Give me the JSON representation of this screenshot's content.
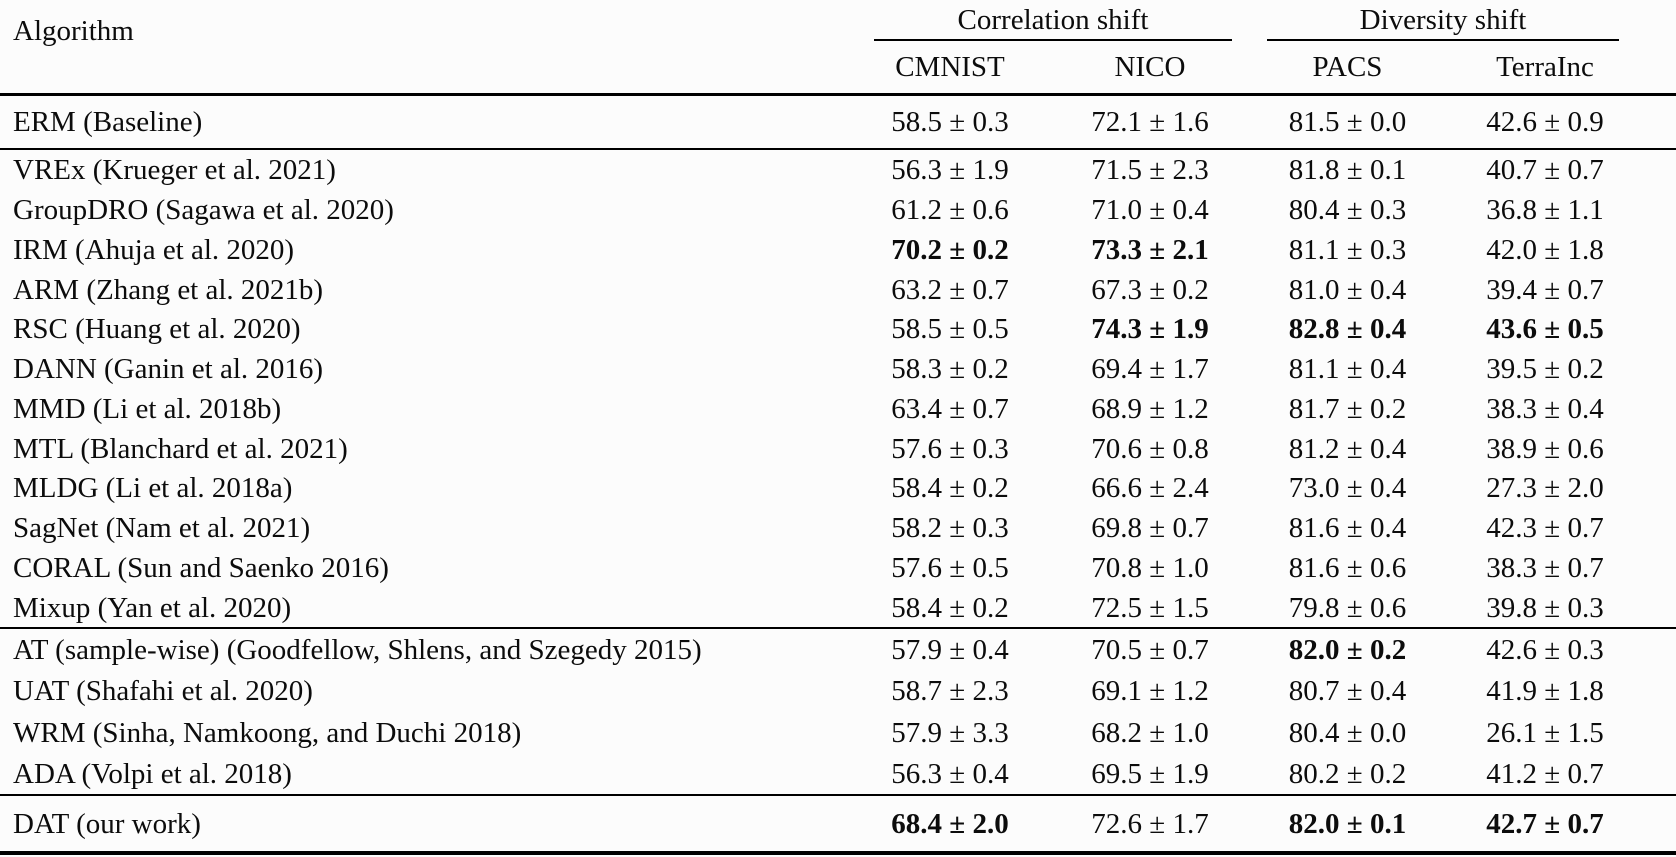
{
  "table": {
    "header": {
      "algorithm": "Algorithm",
      "group1": "Correlation shift",
      "group2": "Diversity shift",
      "sub": [
        "CMNIST",
        "NICO",
        "PACS",
        "TerraInc"
      ]
    },
    "sections": [
      {
        "name": "baseline",
        "rows": [
          {
            "algorithm": "ERM (Baseline)",
            "values": [
              {
                "text": "58.5 ± 0.3",
                "bold": false
              },
              {
                "text": "72.1 ± 1.6",
                "bold": false
              },
              {
                "text": "81.5 ± 0.0",
                "bold": false
              },
              {
                "text": "42.6 ± 0.9",
                "bold": false
              }
            ]
          }
        ]
      },
      {
        "name": "domain-generalization-methods",
        "rows": [
          {
            "algorithm": "VREx (Krueger et al. 2021)",
            "values": [
              {
                "text": "56.3 ± 1.9",
                "bold": false
              },
              {
                "text": "71.5 ± 2.3",
                "bold": false
              },
              {
                "text": "81.8 ± 0.1",
                "bold": false
              },
              {
                "text": "40.7 ± 0.7",
                "bold": false
              }
            ]
          },
          {
            "algorithm": "GroupDRO (Sagawa et al. 2020)",
            "values": [
              {
                "text": "61.2 ± 0.6",
                "bold": false
              },
              {
                "text": "71.0 ± 0.4",
                "bold": false
              },
              {
                "text": "80.4 ± 0.3",
                "bold": false
              },
              {
                "text": "36.8 ± 1.1",
                "bold": false
              }
            ]
          },
          {
            "algorithm": "IRM (Ahuja et al. 2020)",
            "values": [
              {
                "text": "70.2 ± 0.2",
                "bold": true
              },
              {
                "text": "73.3 ± 2.1",
                "bold": true
              },
              {
                "text": "81.1 ± 0.3",
                "bold": false
              },
              {
                "text": "42.0 ± 1.8",
                "bold": false
              }
            ]
          },
          {
            "algorithm": "ARM (Zhang et al. 2021b)",
            "values": [
              {
                "text": "63.2 ± 0.7",
                "bold": false
              },
              {
                "text": "67.3 ± 0.2",
                "bold": false
              },
              {
                "text": "81.0 ± 0.4",
                "bold": false
              },
              {
                "text": "39.4 ± 0.7",
                "bold": false
              }
            ]
          },
          {
            "algorithm": "RSC (Huang et al. 2020)",
            "values": [
              {
                "text": "58.5 ± 0.5",
                "bold": false
              },
              {
                "text": "74.3 ± 1.9",
                "bold": true
              },
              {
                "text": "82.8 ± 0.4",
                "bold": true
              },
              {
                "text": "43.6 ± 0.5",
                "bold": true
              }
            ]
          },
          {
            "algorithm": "DANN (Ganin et al. 2016)",
            "values": [
              {
                "text": "58.3 ± 0.2",
                "bold": false
              },
              {
                "text": "69.4 ± 1.7",
                "bold": false
              },
              {
                "text": "81.1 ± 0.4",
                "bold": false
              },
              {
                "text": "39.5 ± 0.2",
                "bold": false
              }
            ]
          },
          {
            "algorithm": "MMD (Li et al. 2018b)",
            "values": [
              {
                "text": "63.4 ± 0.7",
                "bold": false
              },
              {
                "text": "68.9 ± 1.2",
                "bold": false
              },
              {
                "text": "81.7 ± 0.2",
                "bold": false
              },
              {
                "text": "38.3 ± 0.4",
                "bold": false
              }
            ]
          },
          {
            "algorithm": "MTL (Blanchard et al. 2021)",
            "values": [
              {
                "text": "57.6 ± 0.3",
                "bold": false
              },
              {
                "text": "70.6 ± 0.8",
                "bold": false
              },
              {
                "text": "81.2 ± 0.4",
                "bold": false
              },
              {
                "text": "38.9 ± 0.6",
                "bold": false
              }
            ]
          },
          {
            "algorithm": "MLDG (Li et al. 2018a)",
            "values": [
              {
                "text": "58.4 ± 0.2",
                "bold": false
              },
              {
                "text": "66.6 ± 2.4",
                "bold": false
              },
              {
                "text": "73.0 ± 0.4",
                "bold": false
              },
              {
                "text": "27.3 ± 2.0",
                "bold": false
              }
            ]
          },
          {
            "algorithm": "SagNet (Nam et al. 2021)",
            "values": [
              {
                "text": "58.2 ± 0.3",
                "bold": false
              },
              {
                "text": "69.8 ± 0.7",
                "bold": false
              },
              {
                "text": "81.6 ± 0.4",
                "bold": false
              },
              {
                "text": "42.3 ± 0.7",
                "bold": false
              }
            ]
          },
          {
            "algorithm": "CORAL (Sun and Saenko 2016)",
            "values": [
              {
                "text": "57.6 ± 0.5",
                "bold": false
              },
              {
                "text": "70.8 ± 1.0",
                "bold": false
              },
              {
                "text": "81.6 ± 0.6",
                "bold": false
              },
              {
                "text": "38.3 ± 0.7",
                "bold": false
              }
            ]
          },
          {
            "algorithm": "Mixup (Yan et al. 2020)",
            "values": [
              {
                "text": "58.4 ± 0.2",
                "bold": false
              },
              {
                "text": "72.5 ± 1.5",
                "bold": false
              },
              {
                "text": "79.8 ± 0.6",
                "bold": false
              },
              {
                "text": "39.8 ± 0.3",
                "bold": false
              }
            ]
          }
        ]
      },
      {
        "name": "adversarial-training-methods",
        "rows": [
          {
            "algorithm": "AT (sample-wise) (Goodfellow, Shlens, and Szegedy 2015)",
            "values": [
              {
                "text": "57.9 ± 0.4",
                "bold": false
              },
              {
                "text": "70.5 ± 0.7",
                "bold": false
              },
              {
                "text": "82.0 ± 0.2",
                "bold": true
              },
              {
                "text": "42.6 ± 0.3",
                "bold": false
              }
            ]
          },
          {
            "algorithm": "UAT (Shafahi et al. 2020)",
            "values": [
              {
                "text": "58.7 ± 2.3",
                "bold": false
              },
              {
                "text": "69.1 ± 1.2",
                "bold": false
              },
              {
                "text": "80.7 ± 0.4",
                "bold": false
              },
              {
                "text": "41.9 ± 1.8",
                "bold": false
              }
            ]
          },
          {
            "algorithm": "WRM (Sinha, Namkoong, and Duchi 2018)",
            "values": [
              {
                "text": "57.9 ± 3.3",
                "bold": false
              },
              {
                "text": "68.2 ± 1.0",
                "bold": false
              },
              {
                "text": "80.4 ± 0.0",
                "bold": false
              },
              {
                "text": "26.1 ± 1.5",
                "bold": false
              }
            ]
          },
          {
            "algorithm": "ADA (Volpi et al. 2018)",
            "values": [
              {
                "text": "56.3 ± 0.4",
                "bold": false
              },
              {
                "text": "69.5 ± 1.9",
                "bold": false
              },
              {
                "text": "80.2 ± 0.2",
                "bold": false
              },
              {
                "text": "41.2 ± 0.7",
                "bold": false
              }
            ]
          }
        ]
      },
      {
        "name": "our-work",
        "rows": [
          {
            "algorithm": "DAT (our work)",
            "values": [
              {
                "text": "68.4 ± 2.0",
                "bold": true
              },
              {
                "text": "72.6 ± 1.7",
                "bold": false
              },
              {
                "text": "82.0 ± 0.1",
                "bold": true
              },
              {
                "text": "42.7 ± 0.7",
                "bold": true
              }
            ]
          }
        ]
      }
    ]
  }
}
